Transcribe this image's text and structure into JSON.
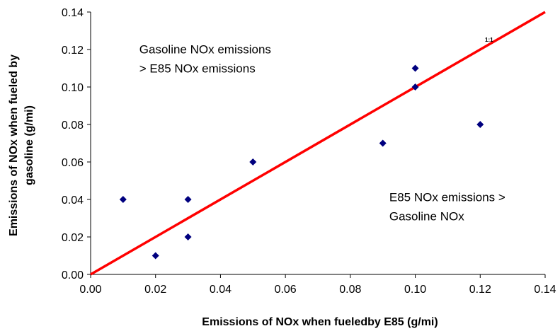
{
  "chart_data": {
    "type": "scatter",
    "xlabel": "Emissions of NOx when fueledby E85 (g/mi)",
    "ylabel_lines": [
      "Emissions of NOx when fueled by",
      "gasoline (g/mi)"
    ],
    "xlim": [
      0,
      0.14
    ],
    "ylim": [
      0,
      0.14
    ],
    "x_ticks": [
      "0.00",
      "0.02",
      "0.04",
      "0.06",
      "0.08",
      "0.10",
      "0.12",
      "0.14"
    ],
    "y_ticks": [
      "0.00",
      "0.02",
      "0.04",
      "0.06",
      "0.08",
      "0.10",
      "0.12",
      "0.14"
    ],
    "grid": false,
    "series": [
      {
        "points": [
          {
            "x": 0.01,
            "y": 0.04
          },
          {
            "x": 0.02,
            "y": 0.01
          },
          {
            "x": 0.03,
            "y": 0.04
          },
          {
            "x": 0.03,
            "y": 0.02
          },
          {
            "x": 0.05,
            "y": 0.06
          },
          {
            "x": 0.09,
            "y": 0.07
          },
          {
            "x": 0.1,
            "y": 0.11
          },
          {
            "x": 0.1,
            "y": 0.1
          },
          {
            "x": 0.12,
            "y": 0.08
          }
        ],
        "color": "#00007f",
        "marker": "diamond"
      }
    ],
    "reference_line": {
      "from": [
        0,
        0
      ],
      "to": [
        0.14,
        0.14
      ],
      "color": "#ff0000",
      "label": "1:1"
    },
    "annotations": [
      {
        "lines": [
          "Gasoline NOx emissions",
          "> E85 NOx emissions"
        ],
        "x": 0.015,
        "y": 0.118
      },
      {
        "lines": [
          "E85 NOx emissions >",
          "Gasoline NOx"
        ],
        "x": 0.092,
        "y": 0.039
      }
    ]
  }
}
